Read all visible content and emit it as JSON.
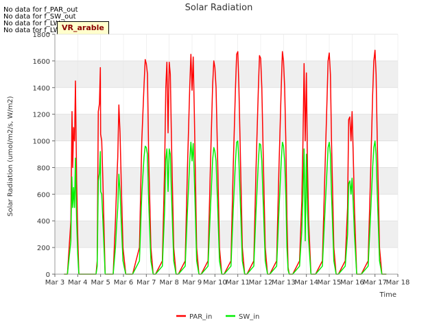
{
  "header": {
    "nodata_lines": [
      "No data for f_PAR_out",
      "No data for f_SW_out",
      "No data for f_LW_in",
      "No data for f_LW_out"
    ],
    "badge": "VR_arable"
  },
  "chart_data": {
    "type": "line",
    "title": "Solar Radiation",
    "xlabel": "Time",
    "ylabel": "Solar Radiation (umol/m2/s, W/m2)",
    "ylim": [
      0,
      1800
    ],
    "yticks": [
      0,
      200,
      400,
      600,
      800,
      1000,
      1200,
      1400,
      1600,
      1800
    ],
    "xlim": [
      3,
      18
    ],
    "x_ticks": [
      3,
      4,
      5,
      6,
      7,
      8,
      9,
      10,
      11,
      12,
      13,
      14,
      15,
      16,
      17,
      18
    ],
    "x_tick_labels": [
      "Mar 3",
      "Mar 4",
      "Mar 5",
      "Mar 6",
      "Mar 7",
      "Mar 8",
      "Mar 9",
      "Mar 10",
      "Mar 11",
      "Mar 12",
      "Mar 13",
      "Mar 14",
      "Mar 15",
      "Mar 16",
      "Mar 17",
      "Mar 18"
    ],
    "grid": true,
    "legend_position": "bottom-center",
    "series": [
      {
        "name": "PAR_in",
        "color": "#ff0000",
        "x": [
          3.4,
          3.55,
          3.7,
          3.75,
          3.78,
          3.82,
          3.86,
          3.9,
          3.95,
          4.0,
          4.05,
          4.1,
          4.4,
          4.8,
          4.85,
          4.9,
          4.95,
          4.99,
          5.0,
          5.05,
          5.1,
          5.2,
          5.4,
          5.55,
          5.65,
          5.7,
          5.75,
          5.8,
          5.85,
          5.9,
          5.98,
          6.1,
          6.3,
          6.4,
          6.7,
          6.8,
          6.9,
          6.95,
          7.0,
          7.05,
          7.1,
          7.2,
          7.3,
          7.4,
          7.7,
          7.8,
          7.85,
          7.9,
          7.95,
          8.0,
          8.05,
          8.1,
          8.2,
          8.3,
          8.4,
          8.7,
          8.8,
          8.9,
          8.95,
          9.0,
          9.05,
          9.1,
          9.2,
          9.3,
          9.4,
          9.7,
          9.8,
          9.9,
          9.95,
          10.0,
          10.05,
          10.1,
          10.2,
          10.3,
          10.4,
          10.7,
          10.8,
          10.9,
          10.95,
          11.0,
          11.05,
          11.1,
          11.2,
          11.3,
          11.4,
          11.7,
          11.8,
          11.9,
          11.95,
          12.0,
          12.05,
          12.1,
          12.2,
          12.3,
          12.4,
          12.7,
          12.8,
          12.9,
          12.95,
          13.0,
          13.05,
          13.1,
          13.15,
          13.2,
          13.25,
          13.4,
          13.7,
          13.8,
          13.85,
          13.9,
          13.95,
          14.0,
          14.05,
          14.1,
          14.2,
          14.4,
          14.7,
          14.8,
          14.9,
          14.95,
          15.0,
          15.05,
          15.1,
          15.2,
          15.3,
          15.4,
          15.7,
          15.8,
          15.85,
          15.9,
          15.95,
          16.0,
          16.05,
          16.1,
          16.2,
          16.4,
          16.7,
          16.8,
          16.9,
          16.95,
          17.0,
          17.05,
          17.1,
          17.2,
          17.3,
          17.4,
          17.5
        ],
        "y": [
          0,
          0,
          400,
          1220,
          800,
          1100,
          1000,
          1450,
          700,
          300,
          0,
          0,
          0,
          0,
          100,
          1220,
          1280,
          1550,
          1050,
          1000,
          700,
          0,
          0,
          0,
          400,
          660,
          880,
          1270,
          1060,
          700,
          200,
          0,
          0,
          0,
          200,
          1000,
          1420,
          1610,
          1580,
          1500,
          900,
          200,
          0,
          0,
          100,
          800,
          1400,
          1590,
          1060,
          1590,
          1500,
          1000,
          200,
          0,
          0,
          100,
          800,
          1420,
          1650,
          1380,
          1630,
          1210,
          200,
          0,
          0,
          100,
          800,
          1420,
          1600,
          1550,
          1400,
          1000,
          200,
          0,
          0,
          100,
          800,
          1400,
          1650,
          1670,
          1400,
          1000,
          200,
          0,
          0,
          100,
          800,
          1400,
          1640,
          1620,
          1400,
          1000,
          200,
          0,
          0,
          100,
          800,
          1400,
          1670,
          1600,
          1400,
          1000,
          430,
          50,
          0,
          0,
          100,
          550,
          1000,
          1580,
          1000,
          1510,
          800,
          400,
          0,
          0,
          100,
          700,
          1300,
          1600,
          1660,
          1500,
          1000,
          200,
          0,
          0,
          100,
          500,
          1160,
          1180,
          1000,
          1220,
          900,
          500,
          0,
          0,
          100,
          700,
          1350,
          1600,
          1680,
          1500,
          1000,
          200,
          0,
          0,
          0
        ]
      },
      {
        "name": "SW_in",
        "color": "#00ee00",
        "x": [
          3.4,
          3.55,
          3.7,
          3.74,
          3.78,
          3.82,
          3.86,
          3.9,
          3.95,
          4.0,
          4.05,
          4.1,
          4.4,
          4.8,
          4.85,
          4.9,
          4.95,
          4.99,
          5.0,
          5.05,
          5.1,
          5.2,
          5.4,
          5.55,
          5.65,
          5.7,
          5.75,
          5.8,
          5.85,
          5.9,
          5.98,
          6.1,
          6.3,
          6.4,
          6.7,
          6.8,
          6.9,
          6.95,
          7.0,
          7.05,
          7.1,
          7.2,
          7.3,
          7.4,
          7.7,
          7.8,
          7.85,
          7.9,
          7.95,
          8.0,
          8.05,
          8.1,
          8.2,
          8.3,
          8.4,
          8.7,
          8.8,
          8.9,
          8.95,
          9.0,
          9.05,
          9.1,
          9.2,
          9.3,
          9.4,
          9.7,
          9.8,
          9.9,
          9.95,
          10.0,
          10.05,
          10.1,
          10.2,
          10.3,
          10.4,
          10.7,
          10.8,
          10.9,
          10.95,
          11.0,
          11.05,
          11.1,
          11.2,
          11.3,
          11.4,
          11.7,
          11.8,
          11.9,
          11.95,
          12.0,
          12.05,
          12.1,
          12.2,
          12.3,
          12.4,
          12.7,
          12.8,
          12.9,
          12.95,
          13.0,
          13.05,
          13.1,
          13.15,
          13.2,
          13.25,
          13.4,
          13.7,
          13.8,
          13.85,
          13.9,
          13.95,
          14.0,
          14.05,
          14.1,
          14.2,
          14.4,
          14.7,
          14.8,
          14.9,
          14.95,
          15.0,
          15.05,
          15.1,
          15.2,
          15.3,
          15.4,
          15.7,
          15.8,
          15.85,
          15.9,
          15.95,
          16.0,
          16.05,
          16.1,
          16.2,
          16.4,
          16.7,
          16.8,
          16.9,
          16.95,
          17.0,
          17.05,
          17.1,
          17.2,
          17.3,
          17.4,
          17.5
        ],
        "y": [
          0,
          0,
          250,
          730,
          500,
          650,
          500,
          870,
          400,
          150,
          0,
          0,
          0,
          0,
          60,
          700,
          760,
          920,
          620,
          600,
          400,
          0,
          0,
          0,
          200,
          370,
          500,
          750,
          620,
          400,
          100,
          0,
          0,
          0,
          100,
          600,
          880,
          960,
          950,
          900,
          550,
          100,
          0,
          0,
          60,
          480,
          860,
          940,
          620,
          940,
          900,
          600,
          100,
          0,
          0,
          60,
          480,
          860,
          990,
          850,
          980,
          730,
          100,
          0,
          0,
          60,
          480,
          860,
          950,
          920,
          850,
          600,
          100,
          0,
          0,
          60,
          480,
          850,
          990,
          1000,
          850,
          600,
          100,
          0,
          0,
          60,
          480,
          850,
          980,
          970,
          850,
          600,
          100,
          0,
          0,
          60,
          480,
          850,
          990,
          960,
          850,
          600,
          200,
          30,
          0,
          0,
          60,
          330,
          600,
          940,
          250,
          900,
          480,
          250,
          0,
          0,
          60,
          420,
          780,
          950,
          990,
          900,
          600,
          100,
          0,
          0,
          60,
          300,
          680,
          700,
          600,
          720,
          540,
          300,
          0,
          0,
          60,
          420,
          800,
          950,
          1000,
          900,
          600,
          100,
          0,
          0,
          0
        ]
      }
    ]
  }
}
